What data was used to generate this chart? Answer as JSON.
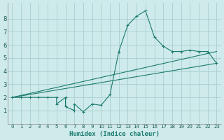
{
  "xlabel": "Humidex (Indice chaleur)",
  "bg_color": "#ceeaea",
  "grid_color": "#aacece",
  "line_color": "#1a7a6e",
  "xlim": [
    -0.5,
    23.5
  ],
  "ylim": [
    0,
    9.2
  ],
  "xticks": [
    0,
    1,
    2,
    3,
    4,
    5,
    6,
    7,
    8,
    9,
    10,
    11,
    12,
    13,
    14,
    15,
    16,
    17,
    18,
    19,
    20,
    21,
    22,
    23
  ],
  "yticks": [
    1,
    2,
    3,
    4,
    5,
    6,
    7,
    8
  ],
  "curve1": [
    [
      0,
      2
    ],
    [
      1,
      2
    ],
    [
      2,
      2
    ],
    [
      3,
      2
    ],
    [
      4,
      2
    ],
    [
      5,
      2
    ],
    [
      5,
      1.5
    ],
    [
      6,
      2
    ],
    [
      6,
      1.3
    ],
    [
      7,
      1.0
    ],
    [
      7,
      1.5
    ],
    [
      8,
      0.9
    ],
    [
      9,
      1.5
    ],
    [
      10,
      1.4
    ],
    [
      11,
      2.2
    ],
    [
      12,
      5.5
    ],
    [
      13,
      7.5
    ],
    [
      14,
      8.2
    ],
    [
      15,
      8.6
    ],
    [
      16,
      6.6
    ],
    [
      17,
      5.9
    ],
    [
      18,
      5.5
    ],
    [
      19,
      5.5
    ],
    [
      20,
      5.6
    ],
    [
      21,
      5.5
    ],
    [
      22,
      5.5
    ],
    [
      23,
      4.6
    ]
  ],
  "line1": [
    [
      0,
      2.0
    ],
    [
      23,
      5.5
    ]
  ],
  "line2": [
    [
      0,
      2.0
    ],
    [
      23,
      4.6
    ]
  ]
}
